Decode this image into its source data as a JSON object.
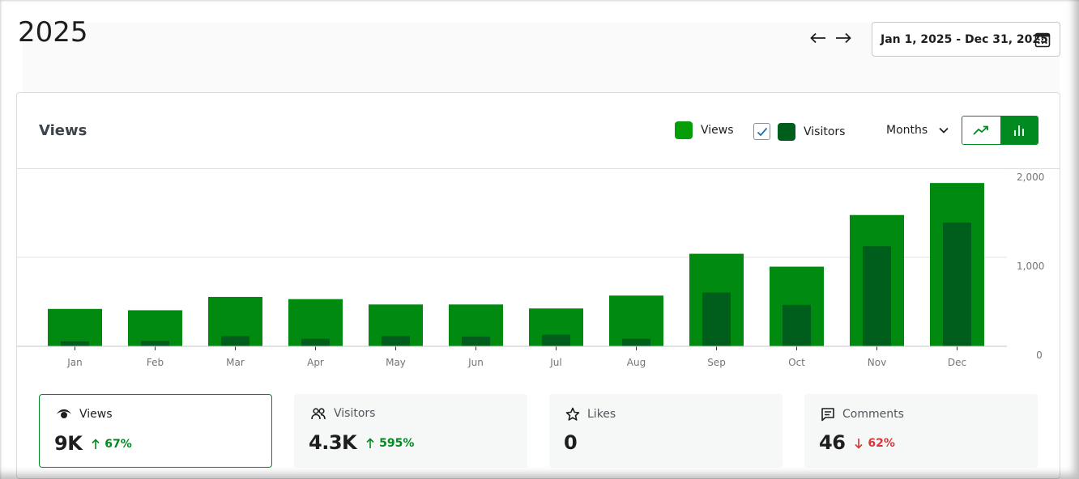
{
  "header": {
    "title": "2025"
  },
  "navigation": {
    "prev_icon": "arrow-left-icon",
    "next_icon": "arrow-right-icon"
  },
  "date_range": {
    "label": "Jan 1, 2025 - Dec 31, 2025",
    "icon": "calendar-icon"
  },
  "views_card": {
    "title": "Views",
    "legend": [
      {
        "label": "Views",
        "color": "#069e08"
      },
      {
        "label": "Visitors",
        "color": "#005e1d",
        "checked": true
      }
    ],
    "period": {
      "selected": "Months"
    },
    "chart_type_toggle": [
      {
        "name": "line-chart-icon",
        "active": false
      },
      {
        "name": "bar-chart-icon",
        "active": true
      }
    ]
  },
  "chart_data": {
    "type": "bar",
    "categories": [
      "Jan",
      "Feb",
      "Mar",
      "Apr",
      "May",
      "Jun",
      "Jul",
      "Aug",
      "Sep",
      "Oct",
      "Nov",
      "Dec"
    ],
    "series": [
      {
        "name": "Views",
        "color": "#008a10",
        "values": [
          420,
          405,
          555,
          530,
          470,
          470,
          425,
          570,
          1040,
          895,
          1475,
          1835
        ]
      },
      {
        "name": "Visitors",
        "color": "#005e1d",
        "values": [
          55,
          60,
          115,
          85,
          115,
          110,
          130,
          85,
          605,
          465,
          1125,
          1390
        ]
      }
    ],
    "y_ticks": [
      "0",
      "1,000",
      "2,000"
    ],
    "ylim": [
      0,
      2000
    ],
    "grid": true
  },
  "stats": [
    {
      "label": "Views",
      "icon": "eye-icon",
      "value": "9K",
      "change": "67%",
      "direction": "up",
      "active": true
    },
    {
      "label": "Visitors",
      "icon": "people-icon",
      "value": "4.3K",
      "change": "595%",
      "direction": "up",
      "active": false
    },
    {
      "label": "Likes",
      "icon": "star-icon",
      "value": "0",
      "change": "",
      "direction": "none",
      "active": false
    },
    {
      "label": "Comments",
      "icon": "comment-icon",
      "value": "46",
      "change": "62%",
      "direction": "down",
      "active": false
    }
  ]
}
